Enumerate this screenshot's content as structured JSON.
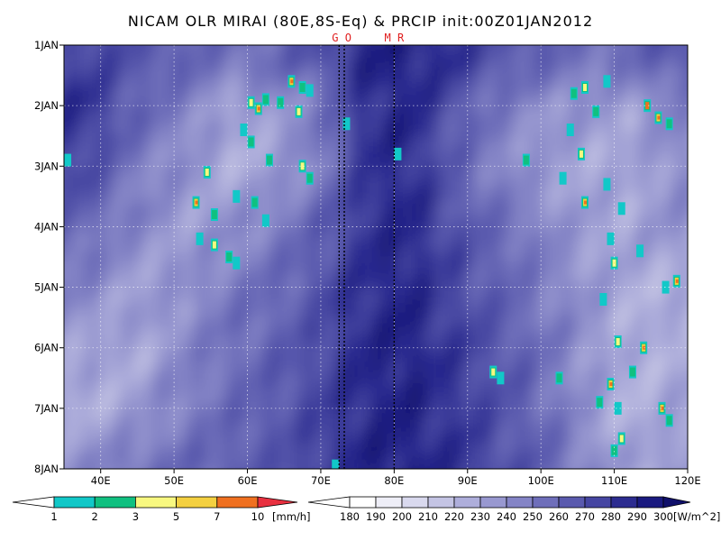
{
  "chart_data": {
    "type": "heatmap",
    "title": "NICAM OLR MIRAI (80E,8S-Eq) & PRCIP init:00Z01JAN2012",
    "xlim": [
      35,
      120
    ],
    "ylim_days": [
      1,
      8
    ],
    "x_ticks": [
      {
        "value": 40,
        "label": "40E"
      },
      {
        "value": 50,
        "label": "50E"
      },
      {
        "value": 60,
        "label": "60E"
      },
      {
        "value": 70,
        "label": "70E"
      },
      {
        "value": 80,
        "label": "80E"
      },
      {
        "value": 90,
        "label": "90E"
      },
      {
        "value": 100,
        "label": "100E"
      },
      {
        "value": 110,
        "label": "110E"
      },
      {
        "value": 120,
        "label": "120E"
      }
    ],
    "y_ticks": [
      {
        "value": 1,
        "label": "1JAN"
      },
      {
        "value": 2,
        "label": "2JAN"
      },
      {
        "value": 3,
        "label": "3JAN"
      },
      {
        "value": 4,
        "label": "4JAN"
      },
      {
        "value": 5,
        "label": "5JAN"
      },
      {
        "value": 6,
        "label": "6JAN"
      },
      {
        "value": 7,
        "label": "7JAN"
      },
      {
        "value": 8,
        "label": "8JAN"
      }
    ],
    "grid": true,
    "y_direction": "time increases downward",
    "markers": [
      {
        "label": "GO",
        "lines": [
          72.5,
          73.2
        ]
      },
      {
        "label": "MR",
        "lines": [
          80.0
        ]
      }
    ],
    "precip_colorbar": {
      "levels": [
        "1",
        "2",
        "3",
        "5",
        "7",
        "10"
      ],
      "unit": "[mm/h]",
      "colors": [
        "#12c8c8",
        "#10c080",
        "#f8f880",
        "#f4d040",
        "#f07020",
        "#e83040"
      ]
    },
    "olr_colorbar": {
      "levels": [
        "180",
        "190",
        "200",
        "210",
        "220",
        "230",
        "240",
        "250",
        "260",
        "270",
        "280",
        "290",
        "300"
      ],
      "unit": "[W/m^2]",
      "colors": [
        "#ffffff",
        "#eeeef7",
        "#d9d9ee",
        "#c4c4e4",
        "#aeaedb",
        "#9898d0",
        "#8484c6",
        "#6e6eba",
        "#5a5aae",
        "#4646a2",
        "#2c2c90",
        "#1a1a80",
        "#10106a"
      ]
    },
    "olr_field_approx": {
      "description_source": "values estimated from shading",
      "rows_days": [
        1.2,
        2,
        3,
        4,
        5,
        6,
        7,
        7.8
      ],
      "cols_lon": [
        38,
        45,
        52,
        58,
        64,
        70,
        76,
        82,
        88,
        94,
        100,
        106,
        112,
        118
      ],
      "values": [
        [
          275,
          268,
          260,
          255,
          258,
          270,
          290,
          292,
          285,
          270,
          262,
          255,
          258,
          268
        ],
        [
          285,
          262,
          248,
          230,
          238,
          250,
          285,
          290,
          268,
          250,
          240,
          238,
          232,
          245
        ],
        [
          275,
          248,
          238,
          225,
          232,
          248,
          282,
          288,
          262,
          245,
          235,
          228,
          230,
          240
        ],
        [
          260,
          245,
          232,
          240,
          248,
          262,
          285,
          290,
          270,
          258,
          248,
          232,
          230,
          238
        ],
        [
          245,
          232,
          240,
          250,
          258,
          268,
          286,
          290,
          275,
          262,
          250,
          238,
          228,
          225
        ],
        [
          232,
          228,
          245,
          255,
          262,
          272,
          288,
          292,
          280,
          268,
          255,
          240,
          225,
          228
        ],
        [
          225,
          235,
          248,
          258,
          265,
          275,
          290,
          292,
          282,
          270,
          258,
          238,
          222,
          230
        ],
        [
          240,
          252,
          258,
          262,
          268,
          278,
          290,
          292,
          285,
          272,
          262,
          245,
          230,
          235
        ]
      ]
    },
    "precip_cells_approx": [
      {
        "lon": 60.5,
        "day": 1.95,
        "mmh": 3
      },
      {
        "lon": 61.5,
        "day": 2.05,
        "mmh": 5
      },
      {
        "lon": 62.5,
        "day": 1.9,
        "mmh": 2
      },
      {
        "lon": 64.5,
        "day": 1.95,
        "mmh": 2
      },
      {
        "lon": 66.0,
        "day": 1.6,
        "mmh": 5
      },
      {
        "lon": 67.5,
        "day": 1.7,
        "mmh": 2
      },
      {
        "lon": 68.5,
        "day": 1.75,
        "mmh": 1
      },
      {
        "lon": 67.0,
        "day": 2.1,
        "mmh": 3
      },
      {
        "lon": 59.5,
        "day": 2.4,
        "mmh": 1
      },
      {
        "lon": 60.5,
        "day": 2.6,
        "mmh": 2
      },
      {
        "lon": 63.0,
        "day": 2.9,
        "mmh": 2
      },
      {
        "lon": 67.5,
        "day": 3.0,
        "mmh": 3
      },
      {
        "lon": 68.5,
        "day": 3.2,
        "mmh": 2
      },
      {
        "lon": 54.5,
        "day": 3.1,
        "mmh": 3
      },
      {
        "lon": 53.0,
        "day": 3.6,
        "mmh": 5
      },
      {
        "lon": 55.5,
        "day": 3.8,
        "mmh": 2
      },
      {
        "lon": 58.5,
        "day": 3.5,
        "mmh": 1
      },
      {
        "lon": 61.0,
        "day": 3.6,
        "mmh": 2
      },
      {
        "lon": 62.5,
        "day": 3.9,
        "mmh": 1
      },
      {
        "lon": 53.5,
        "day": 4.2,
        "mmh": 1
      },
      {
        "lon": 55.5,
        "day": 4.3,
        "mmh": 3
      },
      {
        "lon": 57.5,
        "day": 4.5,
        "mmh": 2
      },
      {
        "lon": 58.5,
        "day": 4.6,
        "mmh": 1
      },
      {
        "lon": 104.5,
        "day": 1.8,
        "mmh": 2
      },
      {
        "lon": 106.0,
        "day": 1.7,
        "mmh": 3
      },
      {
        "lon": 107.5,
        "day": 2.1,
        "mmh": 2
      },
      {
        "lon": 109.0,
        "day": 1.6,
        "mmh": 1
      },
      {
        "lon": 114.5,
        "day": 2.0,
        "mmh": 7
      },
      {
        "lon": 116.0,
        "day": 2.2,
        "mmh": 5
      },
      {
        "lon": 117.5,
        "day": 2.3,
        "mmh": 2
      },
      {
        "lon": 104.0,
        "day": 2.4,
        "mmh": 1
      },
      {
        "lon": 105.5,
        "day": 2.8,
        "mmh": 3
      },
      {
        "lon": 103.0,
        "day": 3.2,
        "mmh": 1
      },
      {
        "lon": 98.0,
        "day": 2.9,
        "mmh": 2
      },
      {
        "lon": 106.0,
        "day": 3.6,
        "mmh": 5
      },
      {
        "lon": 109.0,
        "day": 3.3,
        "mmh": 1
      },
      {
        "lon": 111.0,
        "day": 3.7,
        "mmh": 1
      },
      {
        "lon": 109.5,
        "day": 4.2,
        "mmh": 1
      },
      {
        "lon": 110.0,
        "day": 4.6,
        "mmh": 3
      },
      {
        "lon": 113.5,
        "day": 4.4,
        "mmh": 1
      },
      {
        "lon": 118.5,
        "day": 4.9,
        "mmh": 5
      },
      {
        "lon": 117.0,
        "day": 5.0,
        "mmh": 1
      },
      {
        "lon": 108.5,
        "day": 5.2,
        "mmh": 1
      },
      {
        "lon": 110.5,
        "day": 5.9,
        "mmh": 3
      },
      {
        "lon": 114.0,
        "day": 6.0,
        "mmh": 5
      },
      {
        "lon": 112.5,
        "day": 6.4,
        "mmh": 2
      },
      {
        "lon": 109.5,
        "day": 6.6,
        "mmh": 5
      },
      {
        "lon": 108.0,
        "day": 6.9,
        "mmh": 2
      },
      {
        "lon": 110.5,
        "day": 7.0,
        "mmh": 1
      },
      {
        "lon": 116.5,
        "day": 7.0,
        "mmh": 5
      },
      {
        "lon": 117.5,
        "day": 7.2,
        "mmh": 2
      },
      {
        "lon": 111.0,
        "day": 7.5,
        "mmh": 3
      },
      {
        "lon": 110.0,
        "day": 7.7,
        "mmh": 2
      },
      {
        "lon": 93.5,
        "day": 6.4,
        "mmh": 3
      },
      {
        "lon": 94.5,
        "day": 6.5,
        "mmh": 1
      },
      {
        "lon": 102.5,
        "day": 6.5,
        "mmh": 2
      },
      {
        "lon": 73.5,
        "day": 2.3,
        "mmh": 1
      },
      {
        "lon": 80.5,
        "day": 2.8,
        "mmh": 1
      },
      {
        "lon": 35.5,
        "day": 2.9,
        "mmh": 1
      },
      {
        "lon": 72.0,
        "day": 7.95,
        "mmh": 1
      }
    ]
  }
}
